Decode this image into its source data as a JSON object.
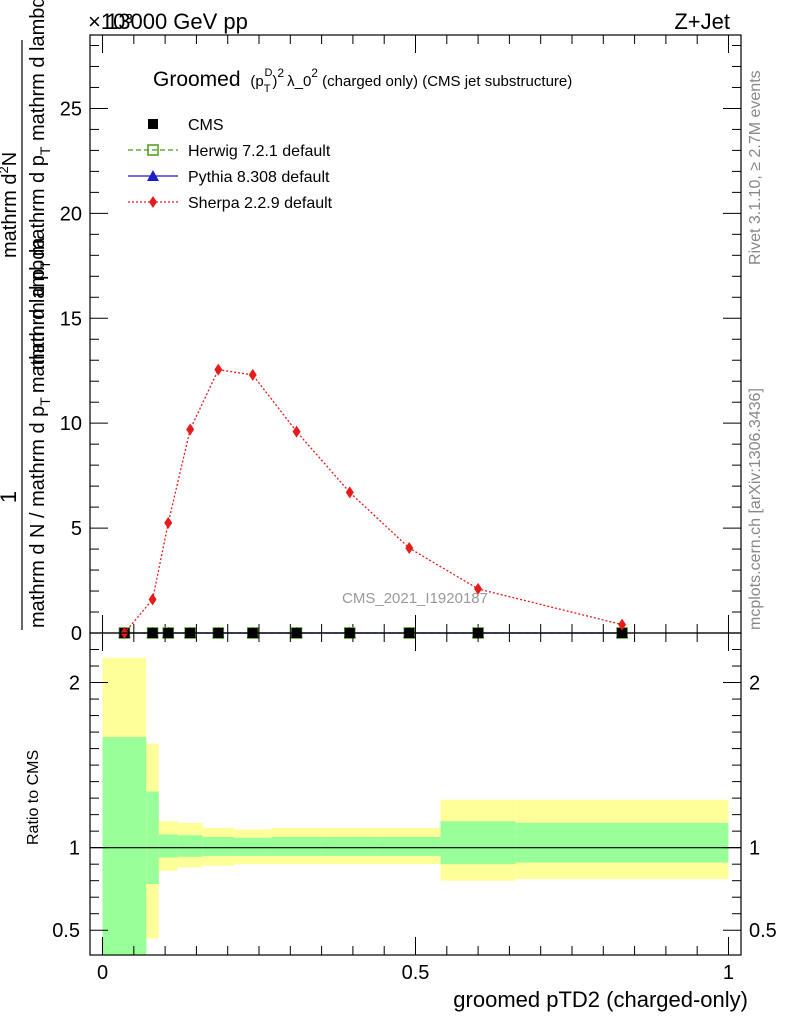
{
  "header": {
    "energy": "13000 GeV pp",
    "process": "Z+Jet",
    "exponent": "×10³",
    "watermark": "CMS_2021_I1920187"
  },
  "side_labels": {
    "rivet": "Rivet 3.1.10, ≥ 2.7M events",
    "mcplots": "mcplots.cern.ch [arXiv:1306.3436]"
  },
  "chart_data": [
    {
      "type": "line",
      "panel": "main",
      "title_prefix": "Groomed",
      "title_suffix": " (charged only) (CMS jet substructure)",
      "title_math": {
        "p": "(p",
        "sup_D": "D",
        "sub_T": "T",
        "close": ")",
        "sup_2a": "2",
        "lambda": "λ_0",
        "sup_2b": "2"
      },
      "ylabel": {
        "numerator_one": "1",
        "denominator": "mathrm d N / mathrm d p_T mathrm d lambda",
        "numerator_one2": "mathrm d²N",
        "denominator2": "mathrm d p_T mathrm d p_T mathrm d lambda"
      },
      "ylabel_lines": {
        "left_top": "1",
        "left_bottom": "mathrm d N / mathrm d p",
        "left_bottom_sub": "T",
        "left_bottom_rest": "mathrm d lambda",
        "right_top": "mathrm d",
        "right_top_sup": "2",
        "right_top_rest": "N",
        "right_bottom": "mathrm d p",
        "right_bottom_sub": "T",
        "right_bottom_rest": "mathrm d p",
        "right_bottom_sub2": "T",
        "right_bottom_rest2": " mathrm d lambda"
      },
      "xlim": [
        -0.02,
        1.02
      ],
      "ylim": [
        0,
        28.5
      ],
      "yticks": [
        0,
        5,
        10,
        15,
        20,
        25
      ],
      "ytick_labels": [
        "0",
        "5",
        "10",
        "15",
        "20",
        "25"
      ],
      "legend_position": "top-left",
      "series": [
        {
          "name": "CMS",
          "color": "#000000",
          "marker": "square-filled",
          "x": [
            0.035,
            0.08,
            0.105,
            0.14,
            0.185,
            0.24,
            0.31,
            0.395,
            0.49,
            0.6,
            0.83
          ],
          "y": [
            0,
            0,
            0,
            0,
            0,
            0,
            0,
            0,
            0,
            0,
            0
          ]
        },
        {
          "name": "Herwig 7.2.1 default",
          "color": "#4a9a1a",
          "marker": "square-open",
          "line": "dashed",
          "x": [
            0.035,
            0.08,
            0.105,
            0.14,
            0.185,
            0.24,
            0.31,
            0.395,
            0.49,
            0.6,
            0.83
          ],
          "y": [
            0,
            0,
            0,
            0,
            0,
            0,
            0,
            0,
            0,
            0,
            0
          ]
        },
        {
          "name": "Pythia 8.308 default",
          "color": "#1c1cc8",
          "marker": "triangle-filled",
          "line": "solid",
          "x": [
            0.035,
            0.08,
            0.105,
            0.14,
            0.185,
            0.24,
            0.31,
            0.395,
            0.49,
            0.6,
            0.83
          ],
          "y": [
            0,
            0,
            0,
            0,
            0,
            0,
            0,
            0,
            0,
            0,
            0
          ]
        },
        {
          "name": "Sherpa 2.2.9 default",
          "color": "#e51c1c",
          "marker": "diamond-filled",
          "line": "dotted",
          "x": [
            0.035,
            0.08,
            0.105,
            0.14,
            0.185,
            0.24,
            0.31,
            0.395,
            0.49,
            0.6,
            0.83
          ],
          "y": [
            0,
            1.6,
            5.25,
            9.7,
            12.55,
            12.3,
            9.6,
            6.7,
            4.05,
            2.1,
            0.4
          ]
        }
      ]
    },
    {
      "type": "area",
      "panel": "ratio",
      "ylabel": "Ratio to CMS",
      "xlabel": "groomed pTD2 (charged-only)",
      "xlim": [
        -0.02,
        1.02
      ],
      "ylim": [
        0.35,
        2.3
      ],
      "yticks": [
        0.5,
        1,
        2
      ],
      "ytick_labels": [
        "0.5",
        "1",
        "2"
      ],
      "xticks": [
        0,
        0.5,
        1
      ],
      "xtick_labels": [
        "0",
        "0.5",
        "1"
      ],
      "reference_line": 1,
      "bands": {
        "edges": [
          0,
          0.07,
          0.09,
          0.12,
          0.16,
          0.21,
          0.27,
          0.35,
          0.44,
          0.54,
          0.66,
          1.0
        ],
        "yellow_low": [
          0.2,
          0.45,
          0.86,
          0.88,
          0.89,
          0.9,
          0.9,
          0.9,
          0.9,
          0.8,
          0.81
        ],
        "yellow_high": [
          2.15,
          1.63,
          1.16,
          1.15,
          1.12,
          1.11,
          1.12,
          1.12,
          1.12,
          1.29,
          1.29
        ],
        "green_low": [
          0.2,
          0.78,
          0.94,
          0.945,
          0.95,
          0.95,
          0.95,
          0.95,
          0.95,
          0.9,
          0.91
        ],
        "green_high": [
          1.67,
          1.34,
          1.08,
          1.075,
          1.065,
          1.06,
          1.065,
          1.065,
          1.065,
          1.16,
          1.15
        ],
        "yellow_color": "#ffff99",
        "green_color": "#99ff99"
      }
    }
  ]
}
